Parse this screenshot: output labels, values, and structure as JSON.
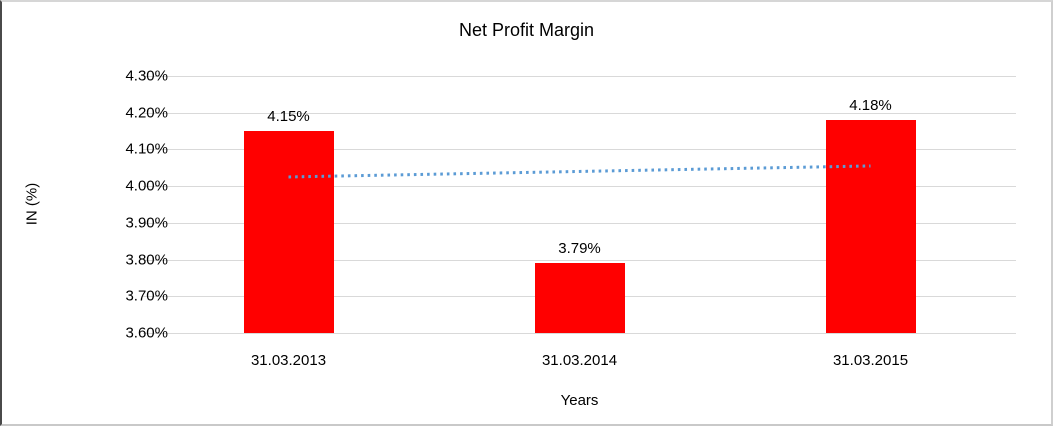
{
  "chart_data": {
    "type": "bar",
    "title": "Net Profit Margin",
    "xlabel": "Years",
    "ylabel": "IN (%)",
    "categories": [
      "31.03.2013",
      "31.03.2014",
      "31.03.2015"
    ],
    "values": [
      4.15,
      3.79,
      4.18
    ],
    "data_labels": [
      "4.15%",
      "3.79%",
      "4.18%"
    ],
    "ylim": [
      3.6,
      4.3
    ],
    "ytick_step": 0.1,
    "ytick_labels": [
      "4.30%",
      "4.20%",
      "4.10%",
      "4.00%",
      "3.90%",
      "3.80%",
      "3.70%",
      "3.60%"
    ],
    "grid": true,
    "legend": "none",
    "bar_color": "#ff0000",
    "gridline_color": "#d9d9d9",
    "trendline": {
      "type": "linear",
      "style": "dotted",
      "color": "#5b9bd5",
      "start_value": 4.025,
      "end_value": 4.055
    }
  }
}
